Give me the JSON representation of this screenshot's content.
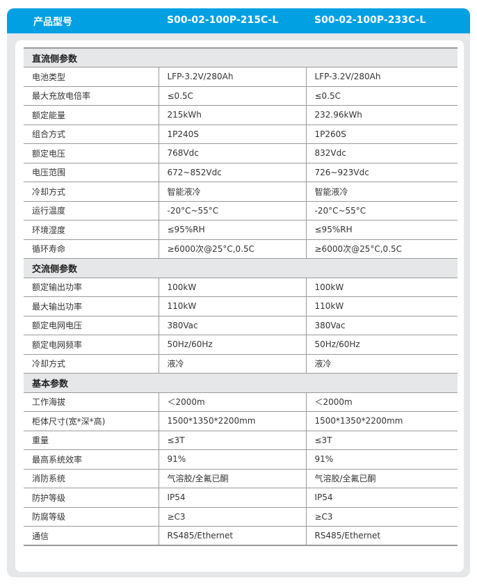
{
  "header": {
    "label": "产品型号",
    "models": [
      "S00-02-100P-215C-L",
      "S00-02-100P-233C-L"
    ]
  },
  "sections": [
    {
      "title": "直流侧参数",
      "rows": [
        [
          "电池类型",
          "LFP-3.2V/280Ah",
          "LFP-3.2V/280Ah"
        ],
        [
          "最大充放电倍率",
          "≤0.5C",
          "≤0.5C"
        ],
        [
          "额定能量",
          "215kWh",
          "232.96kWh"
        ],
        [
          "组合方式",
          "1P240S",
          "1P260S"
        ],
        [
          "额定电压",
          "768Vdc",
          "832Vdc"
        ],
        [
          "电压范围",
          "672~852Vdc",
          "726~923Vdc"
        ],
        [
          "冷却方式",
          "智能液冷",
          "智能液冷"
        ],
        [
          "运行温度",
          "-20°C~55°C",
          "-20°C~55°C"
        ],
        [
          "环境湿度",
          "≤95%RH",
          "≤95%RH"
        ],
        [
          "循环寿命",
          "≥6000次@25°C,0.5C",
          "≥6000次@25°C,0.5C"
        ]
      ]
    },
    {
      "title": "交流侧参数",
      "rows": [
        [
          "额定输出功率",
          "100kW",
          "100kW"
        ],
        [
          "最大输出功率",
          "110kW",
          "110kW"
        ],
        [
          "额定电网电压",
          "380Vac",
          "380Vac"
        ],
        [
          "额定电网频率",
          "50Hz/60Hz",
          "50Hz/60Hz"
        ],
        [
          "冷却方式",
          "液冷",
          "液冷"
        ]
      ]
    },
    {
      "title": "基本参数",
      "rows": [
        [
          "工作海拔",
          "＜2000m",
          "＜2000m"
        ],
        [
          "柜体尺寸(宽*深*高)",
          "1500*1350*2200mm",
          "1500*1350*2200mm"
        ],
        [
          "重量",
          "≤3T",
          "≤3T"
        ],
        [
          "最高系统效率",
          "91%",
          "91%"
        ],
        [
          "消防系统",
          "气溶胶/全氟已酮",
          "气溶胶/全氟已酮"
        ],
        [
          "防护等级",
          "IP54",
          "IP54"
        ],
        [
          "防腐等级",
          "≥C3",
          "≥C3"
        ],
        [
          "通信",
          "RS485/Ethernet",
          "RS485/Ethernet"
        ]
      ]
    }
  ]
}
